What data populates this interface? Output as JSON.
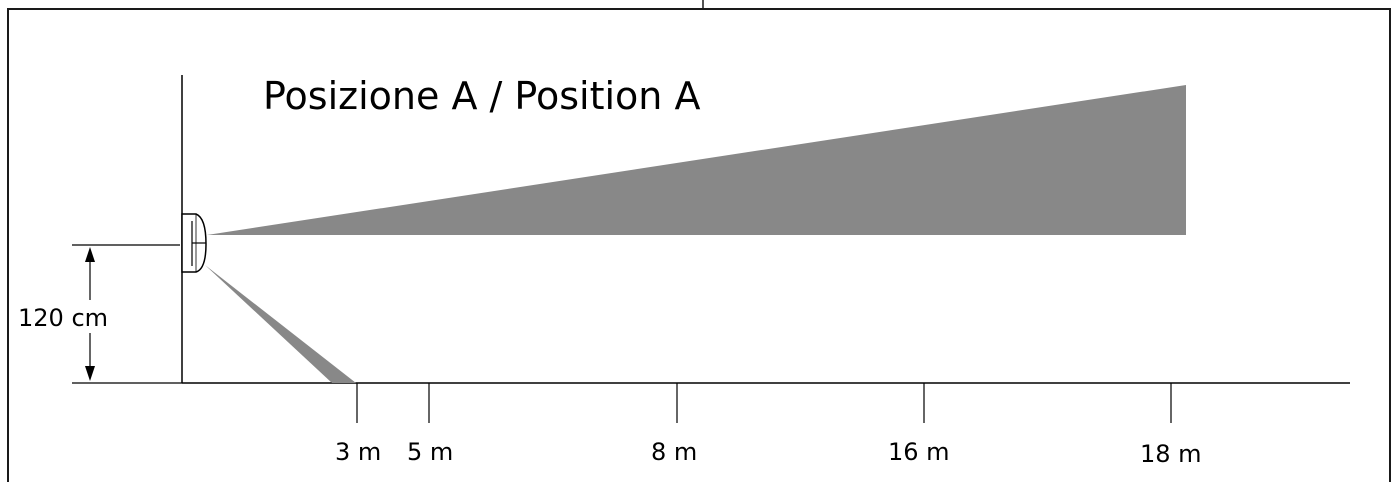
{
  "title": "Posizione A / Position A",
  "height_label": "120 cm",
  "distance_labels": [
    "3 m",
    "5 m",
    "8 m",
    "16 m",
    "18 m"
  ],
  "colors": {
    "beam": "#888888",
    "line": "#000000",
    "frame": "#1a1a1a",
    "background": "#ffffff"
  },
  "icons": [
    "sensor-device-icon",
    "dimension-arrow-icon"
  ]
}
